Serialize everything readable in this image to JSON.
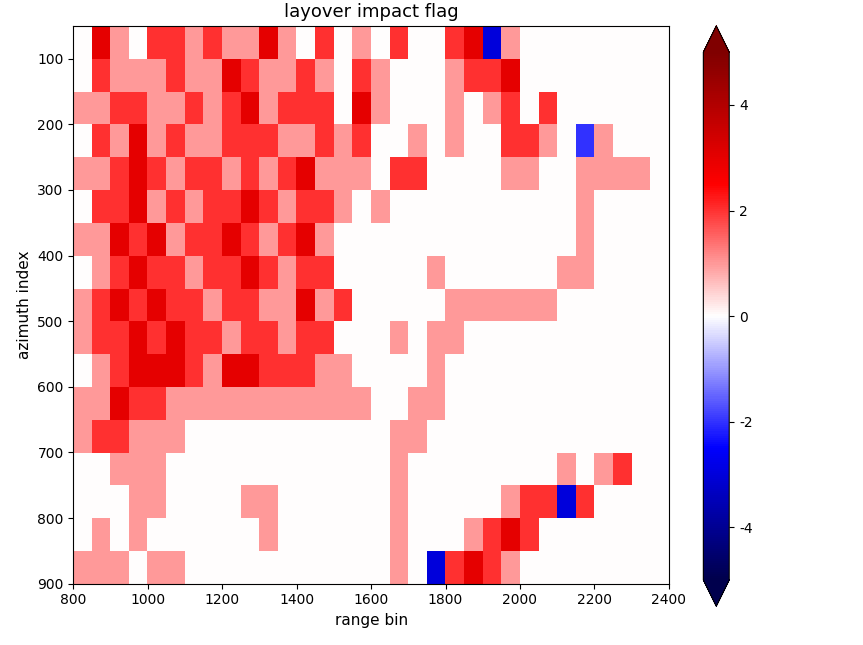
{
  "chart_data": {
    "type": "heatmap",
    "title": "layover impact flag",
    "x_label": "range bin",
    "y_label": "azimuth index",
    "xlim": [
      800,
      2400
    ],
    "ylim": [
      900,
      50
    ],
    "xticks": [
      800,
      1000,
      1200,
      1400,
      1600,
      1800,
      2000,
      2200,
      2400
    ],
    "yticks": [
      100,
      200,
      300,
      400,
      500,
      600,
      700,
      800,
      900
    ],
    "color_range": [
      -5,
      5
    ],
    "color_ticks": [
      -4,
      -2,
      0,
      2,
      4
    ],
    "cells": [
      [
        0,
        3,
        1,
        0,
        2,
        2,
        1,
        2,
        1,
        1,
        3,
        1,
        0,
        2,
        0,
        1,
        0,
        2,
        0,
        0,
        2,
        3,
        -3,
        1,
        0,
        0,
        0,
        0,
        0,
        0,
        0,
        0
      ],
      [
        0,
        2,
        1,
        1,
        1,
        2,
        1,
        1,
        3,
        2,
        1,
        1,
        2,
        1,
        0,
        2,
        1,
        0,
        0,
        0,
        1,
        2,
        2,
        3,
        0,
        0,
        0,
        0,
        0,
        0,
        0,
        0
      ],
      [
        1,
        1,
        2,
        2,
        1,
        1,
        2,
        1,
        2,
        3,
        1,
        2,
        2,
        2,
        0,
        3,
        1,
        0,
        0,
        0,
        1,
        0,
        1,
        2,
        0,
        2,
        0,
        0,
        0,
        0,
        0,
        0
      ],
      [
        0,
        2,
        1,
        3,
        1,
        2,
        1,
        1,
        2,
        2,
        2,
        1,
        1,
        2,
        1,
        2,
        0,
        0,
        1,
        0,
        1,
        0,
        0,
        2,
        2,
        1,
        0,
        -2,
        1,
        0,
        0,
        0
      ],
      [
        1,
        1,
        2,
        3,
        2,
        1,
        2,
        2,
        1,
        2,
        1,
        2,
        3,
        1,
        1,
        1,
        0,
        2,
        2,
        0,
        0,
        0,
        0,
        1,
        1,
        0,
        0,
        1,
        1,
        1,
        1,
        0
      ],
      [
        0,
        2,
        2,
        3,
        1,
        2,
        1,
        2,
        2,
        3,
        2,
        1,
        2,
        2,
        1,
        0,
        1,
        0,
        0,
        0,
        0,
        0,
        0,
        0,
        0,
        0,
        0,
        1,
        0,
        0,
        0,
        0
      ],
      [
        1,
        1,
        3,
        2,
        3,
        1,
        2,
        2,
        3,
        2,
        1,
        2,
        3,
        1,
        0,
        0,
        0,
        0,
        0,
        0,
        0,
        0,
        0,
        0,
        0,
        0,
        0,
        1,
        0,
        0,
        0,
        0
      ],
      [
        0,
        1,
        2,
        3,
        2,
        2,
        1,
        2,
        2,
        3,
        2,
        1,
        2,
        2,
        0,
        0,
        0,
        0,
        0,
        1,
        0,
        0,
        0,
        0,
        0,
        0,
        1,
        1,
        0,
        0,
        0,
        0
      ],
      [
        1,
        2,
        3,
        2,
        3,
        2,
        2,
        1,
        2,
        2,
        1,
        1,
        3,
        1,
        2,
        0,
        0,
        0,
        0,
        0,
        1,
        1,
        1,
        1,
        1,
        1,
        0,
        0,
        0,
        0,
        0,
        0
      ],
      [
        1,
        2,
        2,
        3,
        2,
        3,
        2,
        2,
        1,
        2,
        2,
        1,
        2,
        2,
        0,
        0,
        0,
        1,
        0,
        1,
        1,
        0,
        0,
        0,
        0,
        0,
        0,
        0,
        0,
        0,
        0,
        0
      ],
      [
        0,
        1,
        2,
        3,
        3,
        3,
        2,
        1,
        3,
        3,
        2,
        2,
        2,
        1,
        1,
        0,
        0,
        0,
        0,
        1,
        0,
        0,
        0,
        0,
        0,
        0,
        0,
        0,
        0,
        0,
        0,
        0
      ],
      [
        1,
        1,
        3,
        2,
        2,
        1,
        1,
        1,
        1,
        1,
        1,
        1,
        1,
        1,
        1,
        1,
        0,
        0,
        1,
        1,
        0,
        0,
        0,
        0,
        0,
        0,
        0,
        0,
        0,
        0,
        0,
        0
      ],
      [
        1,
        2,
        2,
        1,
        1,
        1,
        0,
        0,
        0,
        0,
        0,
        0,
        0,
        0,
        0,
        0,
        0,
        1,
        1,
        0,
        0,
        0,
        0,
        0,
        0,
        0,
        0,
        0,
        0,
        0,
        0,
        0
      ],
      [
        0,
        0,
        1,
        1,
        1,
        0,
        0,
        0,
        0,
        0,
        0,
        0,
        0,
        0,
        0,
        0,
        0,
        1,
        0,
        0,
        0,
        0,
        0,
        0,
        0,
        0,
        1,
        0,
        1,
        2,
        0,
        0
      ],
      [
        0,
        0,
        0,
        1,
        1,
        0,
        0,
        0,
        0,
        1,
        1,
        0,
        0,
        0,
        0,
        0,
        0,
        1,
        0,
        0,
        0,
        0,
        0,
        1,
        2,
        2,
        -3,
        2,
        0,
        0,
        0,
        0
      ],
      [
        0,
        1,
        0,
        1,
        0,
        0,
        0,
        0,
        0,
        0,
        1,
        0,
        0,
        0,
        0,
        0,
        0,
        1,
        0,
        0,
        0,
        1,
        2,
        3,
        2,
        0,
        0,
        0,
        0,
        0,
        0,
        0
      ],
      [
        1,
        1,
        1,
        0,
        1,
        1,
        0,
        0,
        0,
        0,
        0,
        0,
        0,
        0,
        0,
        0,
        0,
        1,
        0,
        -3,
        2,
        3,
        2,
        1,
        0,
        0,
        0,
        0,
        0,
        0,
        0,
        0
      ]
    ]
  }
}
